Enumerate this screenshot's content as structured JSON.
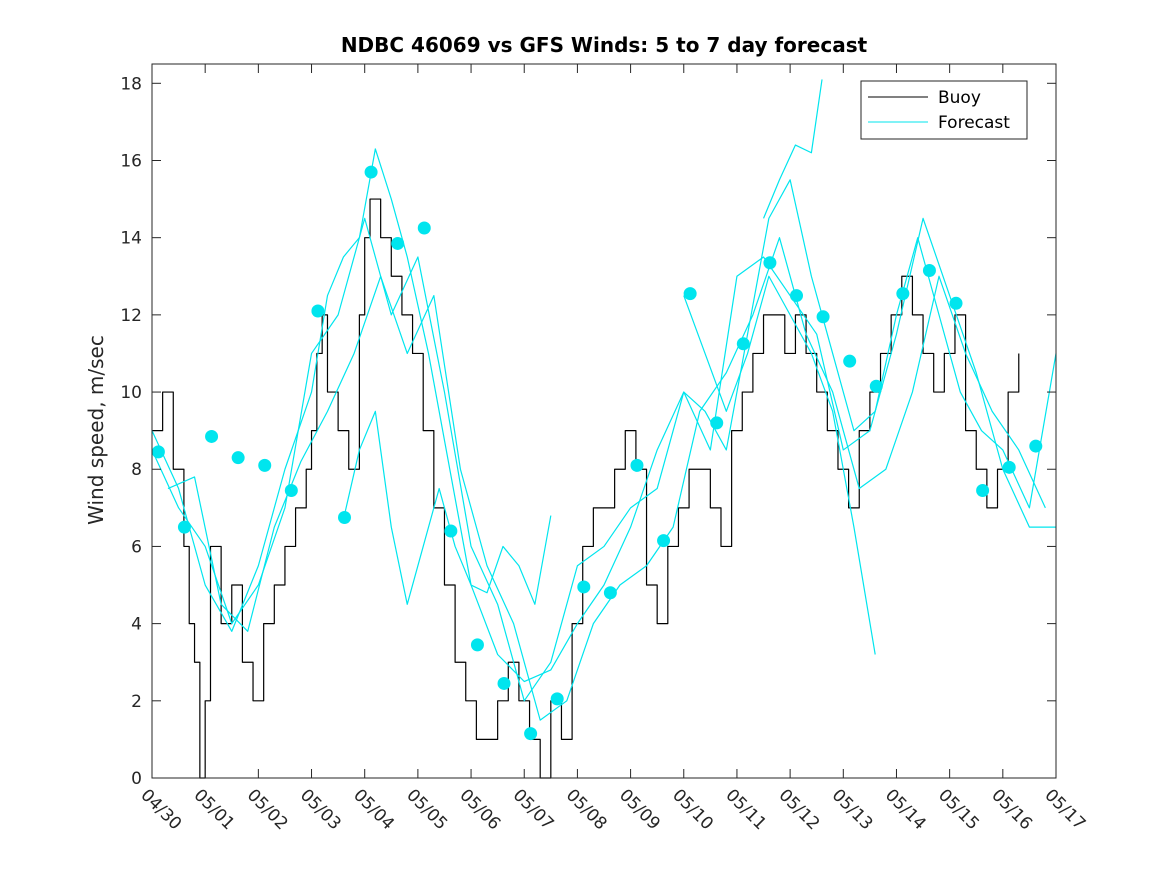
{
  "chart_data": {
    "type": "line",
    "title": "NDBC 46069 vs GFS Winds: 5 to 7 day forecast",
    "ylabel": "Wind speed, m/sec",
    "xlabel": "",
    "xlim_days": [
      0,
      17
    ],
    "ylim": [
      0,
      18.5
    ],
    "x_tick_labels": [
      "04/30",
      "05/01",
      "05/02",
      "05/03",
      "05/04",
      "05/05",
      "05/06",
      "05/07",
      "05/08",
      "05/09",
      "05/10",
      "05/11",
      "05/12",
      "05/13",
      "05/14",
      "05/15",
      "05/16",
      "05/17"
    ],
    "y_ticks": [
      0,
      2,
      4,
      6,
      8,
      10,
      12,
      14,
      16,
      18
    ],
    "legend": {
      "position": "top-right",
      "entries": [
        {
          "label": "Buoy",
          "color": "#000000"
        },
        {
          "label": "Forecast",
          "color": "#00e5ee"
        }
      ]
    },
    "series": [
      {
        "name": "Buoy",
        "color": "#000000",
        "x": [
          0.0,
          0.2,
          0.4,
          0.6,
          0.7,
          0.8,
          0.9,
          1.0,
          1.1,
          1.3,
          1.5,
          1.7,
          1.9,
          2.1,
          2.3,
          2.5,
          2.7,
          2.9,
          3.0,
          3.1,
          3.2,
          3.3,
          3.5,
          3.7,
          3.9,
          4.0,
          4.1,
          4.3,
          4.5,
          4.7,
          4.9,
          5.1,
          5.3,
          5.5,
          5.7,
          5.9,
          6.1,
          6.3,
          6.5,
          6.7,
          6.9,
          7.1,
          7.3,
          7.5,
          7.7,
          7.9,
          8.1,
          8.3,
          8.5,
          8.7,
          8.9,
          9.1,
          9.3,
          9.5,
          9.7,
          9.9,
          10.1,
          10.3,
          10.5,
          10.7,
          10.9,
          11.1,
          11.3,
          11.5,
          11.7,
          11.9,
          12.1,
          12.3,
          12.5,
          12.7,
          12.9,
          13.1,
          13.3,
          13.5,
          13.7,
          13.9,
          14.1,
          14.3,
          14.5,
          14.7,
          14.9,
          15.1,
          15.3,
          15.5,
          15.7,
          15.9,
          16.1,
          16.3
        ],
        "y": [
          9,
          10,
          8,
          6,
          4,
          3,
          0,
          2,
          6,
          4,
          5,
          3,
          2,
          4,
          5,
          6,
          7,
          8,
          9,
          11,
          12,
          10,
          9,
          8,
          12,
          14,
          15,
          14,
          13,
          12,
          11,
          9,
          7,
          5,
          3,
          2,
          1,
          1,
          2,
          3,
          2,
          1,
          0,
          2,
          1,
          4,
          6,
          7,
          7,
          8,
          9,
          8,
          5,
          4,
          6,
          7,
          8,
          8,
          7,
          6,
          9,
          10,
          11,
          12,
          12,
          11,
          12,
          11,
          10,
          9,
          8,
          7,
          9,
          10,
          11,
          12,
          13,
          12,
          11,
          10,
          11,
          12,
          9,
          8,
          7,
          8,
          10,
          11
        ]
      },
      {
        "name": "Forecast",
        "color": "#00e5ee",
        "x": [
          0.0,
          0.5,
          1.0,
          1.5,
          2.0,
          2.5,
          3.0,
          3.3,
          3.6,
          3.9,
          4.2,
          4.5,
          4.8,
          5.2,
          5.6,
          6.0,
          6.5,
          7.0,
          7.5,
          8.0,
          8.5,
          9.0,
          9.5,
          10.0,
          10.4,
          10.8,
          11.2,
          11.6,
          12.0,
          12.4,
          12.8,
          13.2,
          13.6,
          14.0,
          14.4,
          14.8,
          15.2,
          15.6,
          16.0,
          16.5,
          17.0
        ],
        "y": [
          9.0,
          7.5,
          5.0,
          3.8,
          5.5,
          8.0,
          10.0,
          12.5,
          13.5,
          14.0,
          16.3,
          15.0,
          13.5,
          11.0,
          8.0,
          5.0,
          3.2,
          2.5,
          2.8,
          4.0,
          5.0,
          6.5,
          8.5,
          10.0,
          9.5,
          8.5,
          11.5,
          14.5,
          15.5,
          13.0,
          11.0,
          9.0,
          9.5,
          12.0,
          14.0,
          12.0,
          10.0,
          9.0,
          8.5,
          7.0,
          11.0
        ]
      },
      {
        "name": "",
        "color": "#00e5ee",
        "x": [
          0.0,
          0.5,
          1.0,
          1.5,
          2.0,
          2.5,
          3.0,
          3.5,
          4.0,
          4.5,
          5.0,
          5.5,
          6.0,
          6.5,
          7.0,
          7.5,
          8.0,
          8.5,
          9.0,
          9.5,
          10.0,
          10.5,
          11.0,
          11.5,
          12.0,
          12.5,
          13.0,
          13.5,
          14.0,
          14.5,
          15.0,
          15.5,
          16.0,
          16.5,
          17.0
        ],
        "y": [
          8.5,
          7.0,
          6.0,
          4.0,
          5.0,
          7.0,
          11.0,
          12.0,
          14.5,
          12.0,
          13.5,
          10.0,
          6.0,
          4.5,
          2.0,
          3.0,
          5.5,
          6.0,
          7.0,
          7.5,
          10.0,
          8.5,
          13.0,
          13.5,
          12.5,
          11.5,
          8.5,
          9.0,
          11.5,
          14.5,
          12.5,
          10.5,
          8.0,
          6.5,
          6.5
        ]
      },
      {
        "name": "",
        "color": "#00e5ee",
        "x": [
          0.3,
          0.8,
          1.3,
          1.8,
          2.3,
          2.8,
          3.3,
          3.8,
          4.3,
          4.8,
          5.3,
          5.8,
          6.3,
          6.8,
          7.3,
          7.8,
          8.3,
          8.8,
          9.3,
          9.8,
          10.3,
          10.8,
          11.3,
          11.8,
          12.3,
          12.8,
          13.3,
          13.8,
          14.3,
          14.8,
          15.3,
          15.8,
          16.3,
          16.8
        ],
        "y": [
          7.5,
          7.8,
          4.5,
          3.8,
          6.5,
          8.2,
          9.5,
          11.0,
          13.0,
          11.0,
          12.5,
          8.0,
          5.5,
          4.0,
          1.5,
          2.0,
          4.0,
          5.0,
          5.5,
          6.5,
          9.5,
          10.5,
          12.0,
          14.0,
          11.5,
          10.0,
          7.5,
          8.0,
          10.0,
          13.0,
          11.0,
          9.5,
          8.5,
          7.0
        ]
      },
      {
        "name": "",
        "color": "#00e5ee",
        "x": [
          3.6,
          3.9,
          4.2,
          4.5,
          4.8,
          5.1,
          5.4,
          5.7,
          6.0,
          6.3,
          6.6,
          6.9,
          7.2,
          7.5
        ],
        "y": [
          6.7,
          8.5,
          9.5,
          6.5,
          4.5,
          6.0,
          7.5,
          6.0,
          5.0,
          4.8,
          6.0,
          5.5,
          4.5,
          6.8
        ]
      },
      {
        "name": "",
        "color": "#00e5ee",
        "x": [
          10.0,
          10.4,
          10.8,
          11.2,
          11.6,
          12.0,
          12.4,
          12.8,
          13.2,
          13.6
        ],
        "y": [
          12.5,
          11.0,
          9.5,
          11.0,
          13.0,
          12.0,
          11.0,
          9.5,
          6.5,
          3.2
        ]
      },
      {
        "name": "",
        "color": "#00e5ee",
        "x": [
          11.5,
          11.8,
          12.1,
          12.4,
          12.6
        ],
        "y": [
          14.5,
          15.5,
          16.4,
          16.2,
          18.1
        ]
      }
    ],
    "forecast_points": {
      "name": "",
      "color": "#00e5ee",
      "x": [
        0.12,
        0.61,
        1.12,
        1.62,
        2.12,
        2.62,
        3.12,
        3.62,
        4.12,
        4.62,
        5.12,
        5.62,
        6.12,
        6.62,
        7.12,
        7.62,
        8.12,
        8.62,
        9.12,
        9.62,
        10.12,
        10.62,
        11.12,
        11.62,
        12.12,
        12.62,
        13.12,
        13.62,
        14.12,
        14.62,
        15.12,
        15.62,
        16.12,
        16.62
      ],
      "y": [
        8.45,
        6.5,
        8.85,
        8.3,
        8.1,
        7.45,
        12.1,
        6.75,
        15.7,
        13.85,
        14.25,
        6.4,
        3.45,
        2.45,
        1.15,
        2.05,
        4.95,
        4.8,
        8.1,
        6.15,
        12.55,
        9.2,
        11.25,
        13.35,
        12.5,
        11.95,
        10.8,
        10.15,
        12.55,
        13.15,
        12.3,
        7.45,
        8.05,
        8.6
      ]
    }
  }
}
